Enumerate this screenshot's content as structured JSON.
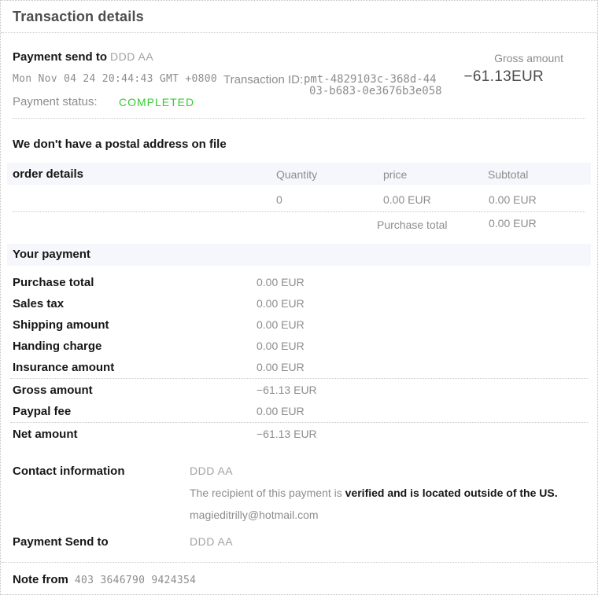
{
  "page": {
    "title": "Transaction details"
  },
  "summary": {
    "payment_send_to_label": "Payment send to",
    "payment_send_to_value": "DDD AA",
    "date": "Mon Nov 04 24 20:44:43 GMT +0800",
    "transaction_id_label": "Transaction ID:",
    "transaction_id_line1": "pmt-4829103c-368d-44",
    "transaction_id_line2": "03-b683-0e3676b3e058",
    "payment_status_label": "Payment status:",
    "payment_status_value": "COMPLETED",
    "gross_amount_label": "Gross amount",
    "gross_amount_value": "−61.13EUR"
  },
  "postal_notice": "We don't have a postal address on file",
  "order_table": {
    "headers": {
      "order_details": "order details",
      "quantity": "Quantity",
      "price": "price",
      "subtotal": "Subtotal"
    },
    "rows": [
      {
        "quantity": "0",
        "price": "0.00 EUR",
        "subtotal": "0.00 EUR"
      }
    ],
    "purchase_total_label": "Purchase total",
    "purchase_total_value": "0.00 EUR"
  },
  "your_payment": {
    "heading": "Your payment",
    "rows": [
      {
        "label": "Purchase total",
        "value": "0.00 EUR"
      },
      {
        "label": "Sales tax",
        "value": "0.00 EUR"
      },
      {
        "label": "Shipping amount",
        "value": "0.00 EUR"
      },
      {
        "label": "Handing charge",
        "value": "0.00 EUR"
      },
      {
        "label": "Insurance amount",
        "value": "0.00 EUR"
      },
      {
        "label": "Gross amount",
        "value": "−61.13 EUR"
      },
      {
        "label": "Paypal fee",
        "value": "0.00 EUR"
      },
      {
        "label": "Net amount",
        "value": "−61.13 EUR"
      }
    ]
  },
  "contact": {
    "label": "Contact information",
    "name": "DDD AA",
    "recipient_note_normal": "The recipient of this payment is ",
    "recipient_note_bold": "verified and is located outside of the US.",
    "email": "magieditrilly@hotmail.com"
  },
  "payment_send_to_footer": {
    "label": "Payment Send to",
    "value": "DDD AA"
  },
  "note": {
    "label": "Note from",
    "value": "403 3646790 9424354"
  },
  "colors": {
    "status_green": "#33cc33",
    "heading_bar_bg": "#f6f7fc",
    "border_dotted": "#c2c2c2"
  }
}
